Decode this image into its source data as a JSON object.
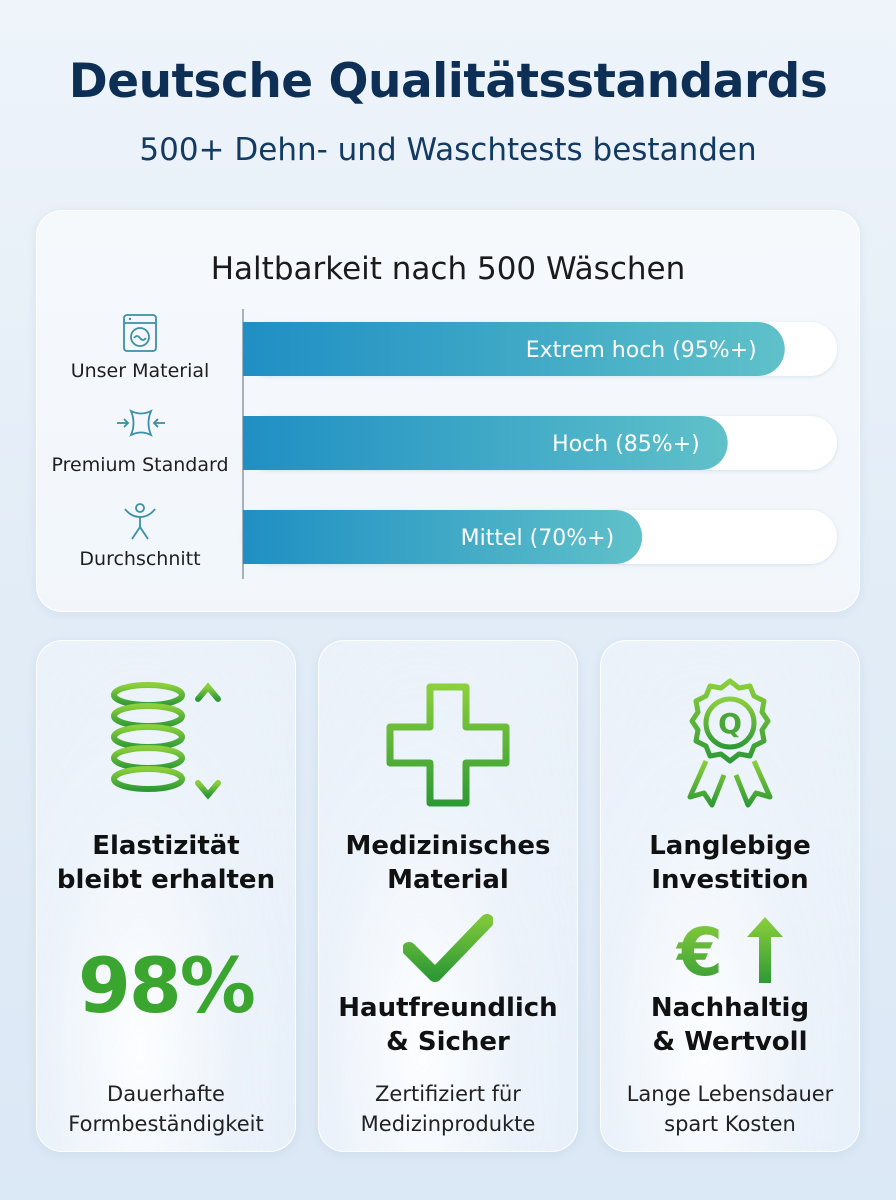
{
  "header": {
    "title": "Deutsche Qualitätsstandards",
    "subtitle": "500+ Dehn- und Waschtests bestanden"
  },
  "chart_data": {
    "type": "bar",
    "orientation": "horizontal",
    "title": "Haltbarkeit nach 500 Wäschen",
    "categories": [
      "Unser Material",
      "Premium Standard",
      "Durchschnitt"
    ],
    "values": [
      95,
      85,
      70
    ],
    "data_labels": [
      "Extrem hoch (95%+)",
      "Hoch (85%+)",
      "Mittel (70%+)"
    ],
    "icons": [
      "washing-machine-icon",
      "compress-fabric-icon",
      "stretching-person-icon"
    ],
    "xlim": [
      0,
      100
    ],
    "grid": false,
    "colors": {
      "bar_start": "#1f8fc4",
      "bar_end": "#5fc1c9",
      "track": "#ffffff"
    }
  },
  "cards": [
    {
      "icon": "spring-arrows-icon",
      "heading_line1": "Elastizität",
      "heading_line2": "bleibt erhalten",
      "stat": "98%",
      "caption_line1": "Dauerhafte",
      "caption_line2": "Formbeständigkeit"
    },
    {
      "icon": "medical-cross-icon",
      "heading_line1": "Medizinisches",
      "heading_line2": "Material",
      "sub_icon": "checkmark-icon",
      "sub_heading_line1": "Hautfreundlich",
      "sub_heading_line2": "& Sicher",
      "caption_line1": "Zertifiziert für",
      "caption_line2": "Medizinprodukte"
    },
    {
      "icon": "quality-badge-icon",
      "badge_letter": "Q",
      "heading_line1": "Langlebige",
      "heading_line2": "Investition",
      "sub_icon": "euro-arrow-up-icon",
      "sub_heading_line1": "Nachhaltig",
      "sub_heading_line2": "& Wertvoll",
      "caption_line1": "Lange Lebensdauer",
      "caption_line2": "spart Kosten"
    }
  ],
  "accent_green": "#3aa52f"
}
